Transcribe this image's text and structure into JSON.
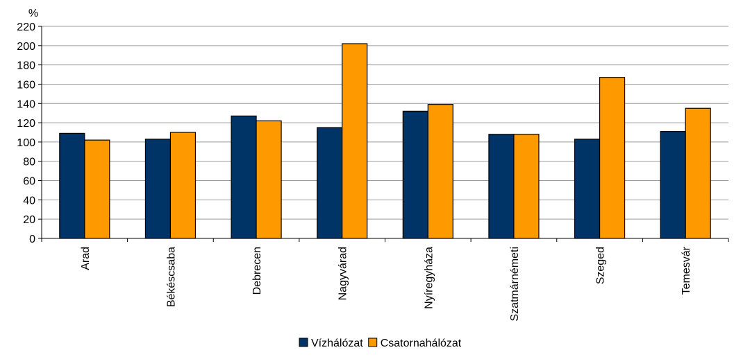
{
  "chart_data": {
    "type": "bar",
    "ylabel": "%",
    "ylim": [
      0,
      220
    ],
    "ytick_step": 20,
    "yticks": [
      "0",
      "20",
      "40",
      "60",
      "80",
      "100",
      "120",
      "140",
      "160",
      "180",
      "200",
      "220"
    ],
    "grid": true,
    "legend_position": "bottom",
    "categories": [
      "Arad",
      "Békéscsaba",
      "Debrecen",
      "Nagyvárad",
      "Nyíregyháza",
      "Szatmárnémeti",
      "Szeged",
      "Temesvár"
    ],
    "series": [
      {
        "name": "Vízhálózat",
        "color": "#003366",
        "values": [
          109,
          103,
          127,
          115,
          132,
          108,
          103,
          111
        ]
      },
      {
        "name": "Csatornahálózat",
        "color": "#ff9900",
        "values": [
          102,
          110,
          122,
          202,
          139,
          108,
          167,
          135
        ]
      }
    ]
  }
}
